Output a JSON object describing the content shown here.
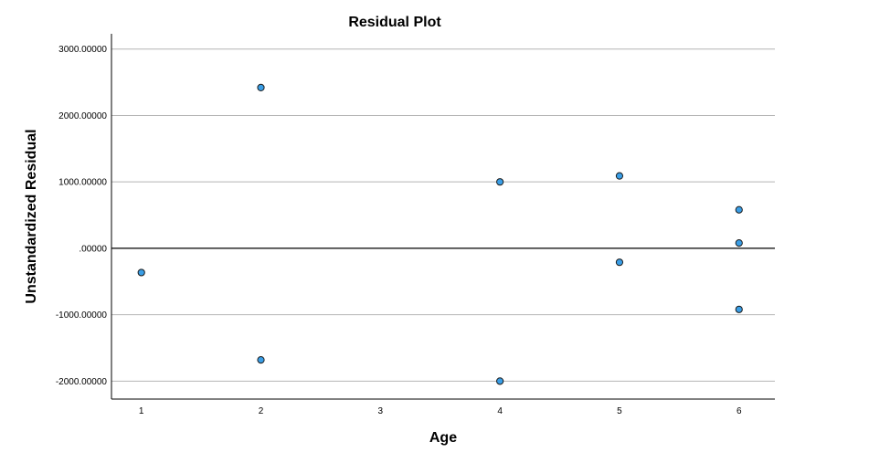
{
  "chart_data": {
    "type": "scatter",
    "title": "Residual Plot",
    "xlabel": "Age",
    "ylabel": "Unstandardized Residual",
    "x_ticks": [
      1,
      2,
      3,
      4,
      5,
      6
    ],
    "y_ticks": [
      3000,
      2000,
      1000,
      0,
      -1000,
      -2000
    ],
    "y_tick_labels": [
      "3000.00000",
      "2000.00000",
      "1000.00000",
      ".00000",
      "-1000.00000",
      "-2000.00000"
    ],
    "xlim": [
      0.75,
      6.3
    ],
    "ylim": [
      -2270,
      3230
    ],
    "grid": true,
    "reference_line_y": 0,
    "points": [
      {
        "x": 1,
        "y": -365
      },
      {
        "x": 2,
        "y": 2420
      },
      {
        "x": 2,
        "y": -1680
      },
      {
        "x": 4,
        "y": 1000
      },
      {
        "x": 4,
        "y": -2000
      },
      {
        "x": 5,
        "y": 1090
      },
      {
        "x": 5,
        "y": -210
      },
      {
        "x": 6,
        "y": 580
      },
      {
        "x": 6,
        "y": 80
      },
      {
        "x": 6,
        "y": -920
      }
    ],
    "colors": {
      "point_fill": "#3a9ee6",
      "point_stroke": "#1a1a1a",
      "grid": "#b4b4b4",
      "zero_line": "#000000",
      "axis": "#000000"
    }
  }
}
